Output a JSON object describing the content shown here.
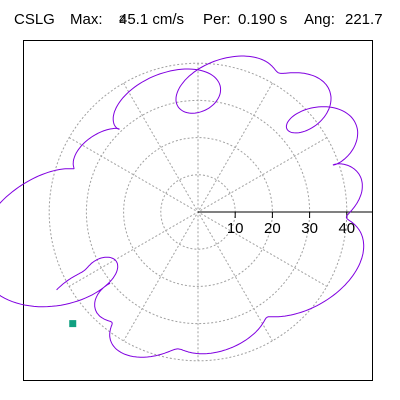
{
  "header": {
    "station": "CSLG",
    "max_label": "Max:",
    "max_value": "45.1 cm/s",
    "max_unit_exp": "2",
    "per_label": "Per:",
    "per_value": "0.190 s",
    "ang_label": "Ang:",
    "ang_value": "221.7"
  },
  "colors": {
    "trace": "#8000e0",
    "marker": "#10a080",
    "grid": "#a0a0a0",
    "frame": "#000000"
  },
  "chart_data": {
    "type": "scatter",
    "subtype": "polar particle-motion orbit",
    "radial_ticks": [
      10,
      20,
      30,
      40
    ],
    "radial_tick_labels": [
      "10",
      "20",
      "30",
      "40"
    ],
    "radial_range": [
      0,
      48
    ],
    "angular_grid_step_deg": 30,
    "grid": true,
    "tick_axis": "positive-x",
    "peak_marker": {
      "r": 45.1,
      "angle_deg": 221.7
    },
    "orbit_components": [
      {
        "r": 45.1,
        "phase_deg": 221.7,
        "k": 1
      },
      {
        "r": 18,
        "phase_deg": 30,
        "k": 3
      },
      {
        "r": 14,
        "phase_deg": 110,
        "k": 5
      },
      {
        "r": 10,
        "phase_deg": 200,
        "k": 8
      },
      {
        "r": 6,
        "phase_deg": 60,
        "k": 13
      }
    ],
    "orbit_flatten": 0.72,
    "orbit_tilt_deg": 36
  }
}
